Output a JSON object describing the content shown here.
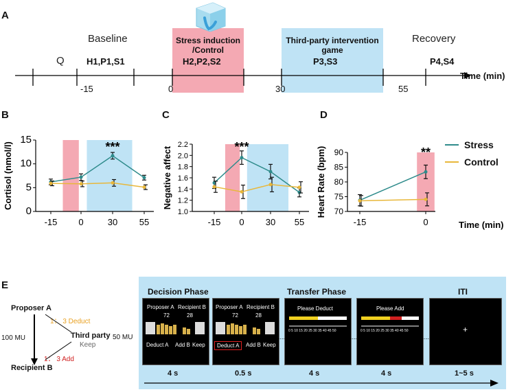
{
  "panels": {
    "a": "A",
    "b": "B",
    "c": "C",
    "d": "D",
    "e": "E"
  },
  "timeline": {
    "phases": {
      "q": "Q",
      "baseline": "Baseline",
      "stress": "Stress induction\n/Control",
      "intervention": "Third-party intervention\ngame",
      "recovery": "Recovery"
    },
    "codes": {
      "baseline": "H1,P1,S1",
      "stress": "H2,P2,S2",
      "intervention": "P3,S3",
      "recovery": "P4,S4"
    },
    "ticks": [
      "-15",
      "0",
      "30",
      "55"
    ],
    "axis_label": "Time (min)",
    "icon": "ice-cube-icon",
    "colors": {
      "stress": "#f4a9b3",
      "intervention": "#bfe3f5"
    }
  },
  "legend": {
    "stress": "Stress",
    "control": "Control",
    "stress_color": "#2e8b8b",
    "control_color": "#e8b73a"
  },
  "chart_data": [
    {
      "panel": "B",
      "type": "line",
      "title": "",
      "ylabel": "Cortisol (nmol/l)",
      "xlabel": "",
      "categories": [
        "-15",
        "0",
        "30",
        "55"
      ],
      "ylim": [
        0,
        15
      ],
      "yticks": [
        "0",
        "5",
        "10",
        "15"
      ],
      "series": [
        {
          "name": "Stress",
          "values": [
            6.2,
            7.2,
            11.7,
            7.1
          ],
          "errors": [
            0.6,
            0.7,
            0.7,
            0.5
          ]
        },
        {
          "name": "Control",
          "values": [
            5.9,
            5.8,
            6.0,
            5.1
          ],
          "errors": [
            0.5,
            0.6,
            0.7,
            0.5
          ]
        }
      ],
      "significance": [
        {
          "at": "30",
          "label": "***"
        }
      ],
      "shaded": [
        {
          "from": "-6",
          "to": "6",
          "color": "#f4a9b3"
        },
        {
          "from": "12",
          "to": "46",
          "color": "#bfe3f5"
        }
      ]
    },
    {
      "panel": "C",
      "type": "line",
      "title": "",
      "ylabel": "Negative affect",
      "xlabel": "",
      "categories": [
        "-15",
        "0",
        "30",
        "55"
      ],
      "ylim": [
        1.0,
        2.2
      ],
      "yticks": [
        "1.0",
        "1.2",
        "1.4",
        "1.6",
        "1.8",
        "2.0",
        "2.2"
      ],
      "series": [
        {
          "name": "Stress",
          "values": [
            1.51,
            1.96,
            1.71,
            1.34
          ],
          "errors": [
            0.1,
            0.12,
            0.13,
            0.08
          ]
        },
        {
          "name": "Control",
          "values": [
            1.44,
            1.35,
            1.48,
            1.43
          ],
          "errors": [
            0.1,
            0.12,
            0.13,
            0.1
          ]
        }
      ],
      "significance": [
        {
          "at": "0",
          "label": "***"
        }
      ],
      "shaded": [
        {
          "from": "-6",
          "to": "6",
          "color": "#f4a9b3"
        },
        {
          "from": "12",
          "to": "46",
          "color": "#bfe3f5"
        }
      ]
    },
    {
      "panel": "D",
      "type": "line",
      "title": "",
      "ylabel": "Heart Rate (bpm)",
      "xlabel": "Time (min)",
      "categories": [
        "-15",
        "0"
      ],
      "ylim": [
        70,
        90
      ],
      "yticks": [
        "70",
        "75",
        "80",
        "85",
        "90"
      ],
      "series": [
        {
          "name": "Stress",
          "values": [
            73.8,
            83.4
          ],
          "errors": [
            1.9,
            2.3
          ]
        },
        {
          "name": "Control",
          "values": [
            73.6,
            74.1
          ],
          "errors": [
            1.8,
            2.2
          ]
        }
      ],
      "significance": [
        {
          "at": "0",
          "label": "**"
        }
      ],
      "shaded": [
        {
          "from": "-2",
          "to": "2",
          "color": "#f4a9b3"
        }
      ]
    }
  ],
  "game": {
    "proposer": "Proposer  A",
    "recipient": "Recipient  B",
    "third_party": "Third party",
    "mu_left": "100 MU",
    "mu_right": "50 MU",
    "deduct": "1： 3 Deduct",
    "keep": "Keep",
    "add": "1： 3 Add",
    "deduct_color": "#e8a020",
    "add_color": "#d02020"
  },
  "trial": {
    "phases": {
      "decision": "Decision Phase",
      "transfer": "Transfer Phase",
      "iti": "ITI"
    },
    "screens": {
      "proposer": "Proposer A",
      "recipient": "Recipient B",
      "amount_a": "72",
      "amount_b": "28",
      "deduct_a": "Deduct A",
      "add_b": "Add B",
      "keep": "Keep",
      "please_deduct": "Please Deduct",
      "please_add": "Please Add",
      "scale": "0  5  10 15 20 25 30 35 40 45 50",
      "fixation": "+",
      "ellipsis": "......"
    },
    "durations": [
      "4 s",
      "0.5 s",
      "4 s",
      "4 s",
      "1~5 s"
    ]
  }
}
